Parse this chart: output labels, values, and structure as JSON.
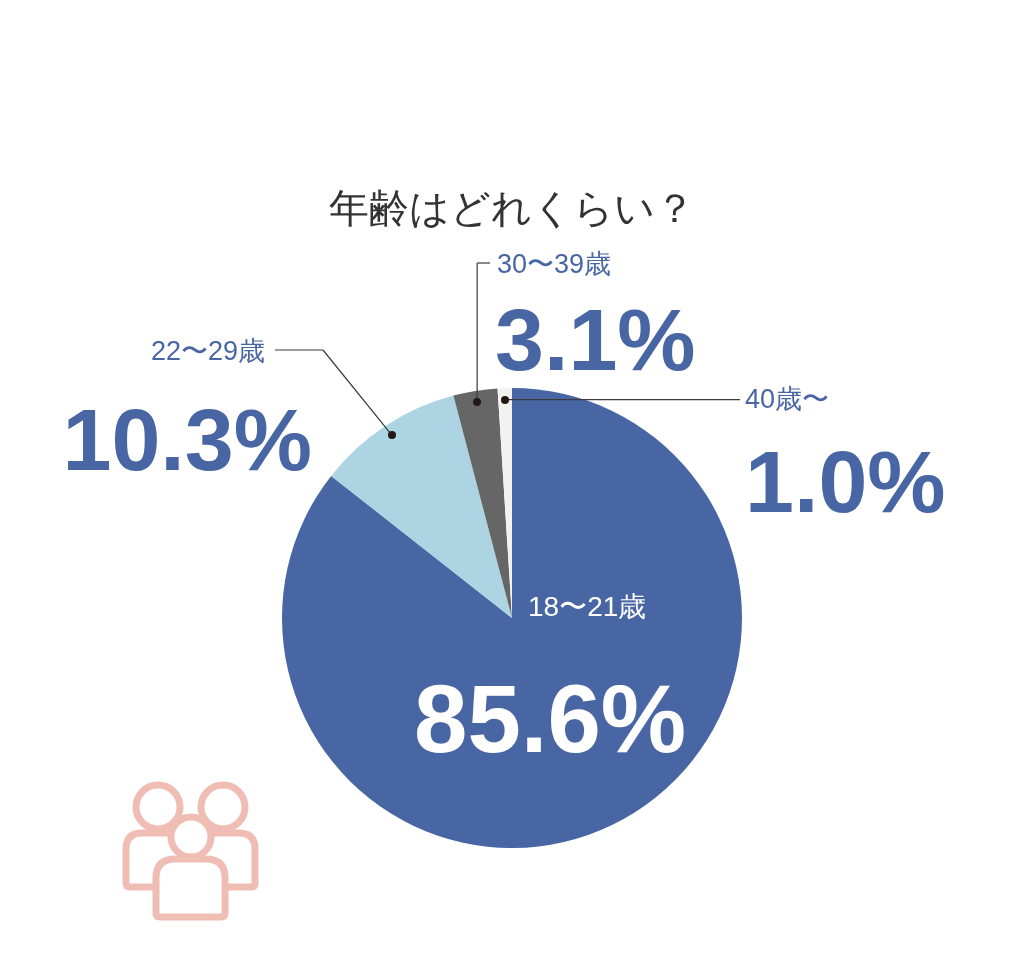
{
  "chart_data": {
    "type": "pie",
    "title": "年齢はどれくらい？",
    "categories": [
      "18〜21歳",
      "22〜29歳",
      "30〜39歳",
      "40歳〜"
    ],
    "values": [
      85.6,
      10.3,
      3.1,
      1.0
    ],
    "value_labels": [
      "85.6%",
      "10.3%",
      "3.1%",
      "1.0%"
    ],
    "colors": [
      "#4866a4",
      "#acd4e2",
      "#666666",
      "#f2f2f0"
    ]
  }
}
